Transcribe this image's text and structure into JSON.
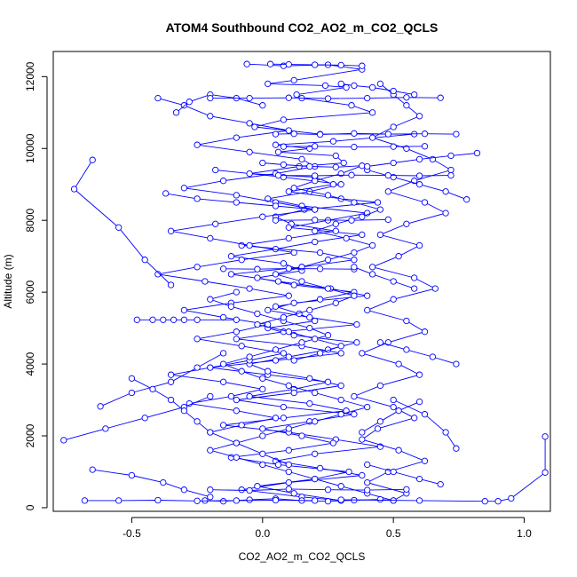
{
  "chart_data": {
    "type": "line",
    "title": "ATOM4 Southbound CO2_AO2_m_CO2_QCLS",
    "xlabel": "CO2_AO2_m_CO2_QCLS",
    "ylabel": "Altitude (m)",
    "xlim": [
      -0.8,
      1.1
    ],
    "ylim": [
      -100,
      12700
    ],
    "x_ticks": [
      -0.5,
      0.0,
      0.5,
      1.0
    ],
    "x_tick_labels": [
      "-0.5",
      "0.0",
      "0.5",
      "1.0"
    ],
    "y_ticks": [
      0,
      2000,
      4000,
      6000,
      8000,
      10000,
      12000
    ],
    "y_tick_labels": [
      "0",
      "2000",
      "4000",
      "6000",
      "8000",
      "10000",
      "12000"
    ],
    "grid": false,
    "legend": "none",
    "series_color": "#0000ff",
    "marker": "open-circle",
    "series": [
      {
        "x": [
          -0.06,
          0.08,
          0.25,
          0.38,
          0.12,
          0.02,
          0.24,
          0.32,
          0.13,
          0.15,
          0.34,
          0.42,
          0.08,
          -0.03,
          0.22,
          0.58,
          0.27,
          0.05,
          0.18,
          0.06,
          0.28,
          0.31,
          0.14,
          -0.05,
          0.2,
          0.27,
          0.1,
          0.3,
          0.44,
          0.16,
          0.05,
          0.11,
          0.28,
          0.1,
          -0.08,
          0.22,
          0.35,
          0.15,
          -0.12,
          0.06,
          0.26,
          0.4,
          0.12,
          0.02,
          0.18,
          0.36,
          0.08,
          -0.1,
          0.15,
          0.3,
          0.05,
          -0.2,
          0.02,
          0.25,
          0.12,
          -0.05,
          0.18,
          0.32,
          0.08,
          -0.15,
          0.1,
          0.28,
          0.45,
          0.2,
          0.05,
          0.22,
          0.38,
          0.1,
          -0.08,
          0.15,
          0.3,
          0.12,
          -0.02,
          0.2,
          0.33,
          0.06,
          -0.12,
          0.1,
          0.27,
          0.15,
          0.0,
          0.18,
          0.35,
          0.08,
          -0.1,
          0.12,
          0.3,
          0.18,
          0.02,
          -0.05,
          0.1,
          0.25,
          0.36,
          0.12,
          0.02,
          0.2,
          0.14,
          0.05,
          0.22,
          0.35,
          0.12,
          -0.02,
          0.15,
          0.08,
          -0.12,
          0.05,
          0.2,
          0.38,
          0.1,
          0.25,
          0.4,
          0.15,
          0.02,
          0.18,
          0.3,
          0.08,
          -0.18
        ],
        "y": [
          12350,
          12300,
          12330,
          12200,
          11900,
          11800,
          11750,
          11700,
          11500,
          11400,
          11200,
          11000,
          10800,
          10600,
          10400,
          10400,
          10200,
          10100,
          10000,
          9900,
          9800,
          9600,
          9500,
          9300,
          9200,
          9000,
          8800,
          8600,
          8500,
          8300,
          8100,
          7900,
          7700,
          7500,
          7300,
          7100,
          6900,
          6700,
          6500,
          6300,
          6100,
          5900,
          5700,
          5500,
          5300,
          5100,
          4900,
          4700,
          4500,
          4300,
          4100,
          3900,
          3700,
          3500,
          3300,
          3100,
          2900,
          2700,
          2500,
          2300,
          2100,
          1900,
          1700,
          1500,
          1300,
          1100,
          900,
          700,
          500,
          300,
          200,
          400,
          600,
          800,
          1000,
          1200,
          1400,
          1600,
          1800,
          2000,
          2200,
          2400,
          2600,
          2800,
          3000,
          3200,
          3400,
          3600,
          3800,
          4000,
          4200,
          4400,
          4600,
          4800,
          5000,
          5200,
          5400,
          5600,
          5800,
          6000,
          6200,
          6400,
          6600,
          6800,
          7000,
          7200,
          7400,
          7600,
          7800,
          8000,
          8200,
          8400,
          8600,
          8800,
          9000,
          9200,
          9400
        ]
      },
      {
        "x": [
          -0.4,
          -0.3,
          -0.2,
          -0.05,
          0.1,
          -0.1,
          -0.25,
          -0.05,
          0.15,
          0.2,
          0.05,
          -0.15,
          -0.3,
          -0.1,
          0.05,
          0.2,
          0.0,
          -0.18,
          -0.35,
          -0.2,
          -0.05,
          0.12,
          -0.08,
          -0.25,
          -0.4,
          -0.22,
          -0.05,
          0.1,
          -0.12,
          -0.3,
          -0.15,
          0.02,
          -0.1,
          -0.25,
          -0.08,
          0.08,
          -0.05,
          -0.2,
          -0.35,
          -0.15,
          0.0,
          -0.12,
          -0.28,
          -0.1,
          0.05,
          -0.08,
          -0.2
        ],
        "y": [
          11400,
          11200,
          10900,
          10700,
          10500,
          10300,
          10100,
          9900,
          9700,
          9500,
          9300,
          9100,
          8900,
          8700,
          8500,
          8300,
          8100,
          7900,
          7700,
          7500,
          7300,
          7100,
          6900,
          6700,
          6500,
          6300,
          6100,
          5900,
          5700,
          5500,
          5300,
          5100,
          4900,
          4700,
          4500,
          4300,
          4100,
          3900,
          3700,
          3500,
          3300,
          3100,
          2900,
          2700,
          2500,
          2300,
          2100
        ]
      },
      {
        "x": [
          0.45,
          0.5,
          0.55,
          0.6,
          0.5,
          0.42,
          0.55,
          0.65,
          0.72,
          0.58,
          0.48,
          0.62,
          0.7,
          0.55,
          0.45,
          0.6,
          0.52,
          0.42,
          0.58,
          0.66,
          0.5,
          0.4,
          0.55,
          0.62,
          0.48,
          0.38,
          0.52,
          0.6,
          0.45,
          0.35,
          0.5,
          0.58,
          0.44,
          0.38,
          0.52,
          0.62,
          0.48,
          0.4,
          0.55,
          0.5
        ],
        "y": [
          11800,
          11500,
          11200,
          10900,
          10600,
          10300,
          10000,
          9700,
          9400,
          9100,
          8800,
          8500,
          8200,
          7900,
          7600,
          7300,
          7000,
          6700,
          6400,
          6100,
          5800,
          5500,
          5200,
          4900,
          4600,
          4300,
          4000,
          3700,
          3400,
          3100,
          2800,
          2500,
          2200,
          1900,
          1600,
          1300,
          1000,
          700,
          400,
          200
        ]
      },
      {
        "x": [
          -0.22,
          -0.15,
          -0.05,
          0.05,
          0.15,
          0.25,
          0.35,
          0.45,
          0.5,
          0.4,
          0.3,
          0.2,
          0.1,
          0.0,
          -0.1,
          -0.2,
          -0.1,
          0.0,
          0.1,
          0.2,
          0.3,
          0.4,
          0.3,
          0.2,
          0.1,
          0.0,
          -0.08,
          -0.15,
          -0.05,
          0.05,
          0.15,
          0.25,
          0.18,
          0.08,
          -0.02,
          -0.12,
          -0.2,
          -0.1
        ],
        "y": [
          200,
          180,
          220,
          250,
          200,
          180,
          210,
          230,
          200,
          400,
          600,
          800,
          1000,
          1200,
          1400,
          1600,
          1800,
          2000,
          2200,
          2400,
          2600,
          2800,
          3000,
          3200,
          3400,
          3600,
          3800,
          4000,
          4200,
          4400,
          4600,
          4800,
          5000,
          5200,
          5400,
          5600,
          5800,
          6000
        ]
      },
      {
        "x": [
          0.0,
          0.08,
          0.18,
          0.28,
          0.38,
          0.3,
          0.2,
          0.12,
          0.25,
          0.35,
          0.45,
          0.38,
          0.28,
          0.2,
          0.32,
          0.42,
          0.35,
          0.25,
          0.15,
          0.05,
          0.15,
          0.25,
          0.35,
          0.28,
          0.18,
          0.08,
          -0.02,
          0.1,
          0.2,
          0.3,
          0.22,
          0.12
        ],
        "y": [
          9600,
          9550,
          9500,
          9480,
          9520,
          9300,
          9100,
          8900,
          8700,
          8500,
          8300,
          8100,
          7900,
          7700,
          7500,
          7300,
          7100,
          6900,
          6700,
          6500,
          6300,
          6100,
          5900,
          5700,
          5500,
          5300,
          5100,
          4900,
          4700,
          4500,
          4300,
          4100
        ]
      },
      {
        "x": [
          -0.65,
          -0.72,
          -0.55,
          -0.45,
          -0.35
        ],
        "y": [
          9680,
          8870,
          7800,
          6900,
          6200
        ]
      },
      {
        "x": [
          -0.76,
          -0.6,
          -0.45,
          -0.3,
          -0.2
        ],
        "y": [
          1880,
          2200,
          2500,
          2800,
          3100
        ]
      },
      {
        "x": [
          -0.65,
          -0.5,
          -0.38,
          -0.3,
          -0.2
        ],
        "y": [
          1060,
          900,
          700,
          500,
          300
        ]
      },
      {
        "x": [
          -0.62,
          -0.5,
          -0.35,
          -0.25,
          -0.15
        ],
        "y": [
          2820,
          3200,
          3500,
          3900,
          4300
        ]
      },
      {
        "x": [
          -0.5,
          -0.42,
          -0.35,
          -0.3,
          -0.25,
          -0.2,
          -0.1,
          0.0,
          0.1
        ],
        "y": [
          3600,
          3300,
          3000,
          2700,
          2400,
          2100,
          1800,
          1500,
          1200
        ]
      },
      {
        "x": [
          -0.48,
          -0.42,
          -0.38,
          -0.34,
          -0.3,
          -0.25,
          -0.1
        ],
        "y": [
          5230,
          5230,
          5230,
          5230,
          5230,
          5230,
          5230
        ]
      },
      {
        "x": [
          -0.37,
          -0.25,
          -0.1,
          0.05,
          0.2
        ],
        "y": [
          8750,
          8600,
          8500,
          8400,
          8300
        ]
      },
      {
        "x": [
          -0.33,
          -0.28,
          -0.2,
          -0.1,
          0.0
        ],
        "y": [
          11000,
          11300,
          11500,
          11400,
          11200
        ]
      },
      {
        "x": [
          1.08,
          1.08,
          0.95,
          0.9,
          0.85,
          0.6,
          0.3
        ],
        "y": [
          1980,
          980,
          260,
          180,
          180,
          200,
          220
        ]
      },
      {
        "x": [
          0.78,
          0.7,
          0.6,
          0.5,
          0.4
        ],
        "y": [
          8580,
          8800,
          9000,
          9200,
          9400
        ]
      },
      {
        "x": [
          0.82,
          0.72,
          0.6,
          0.5,
          0.4
        ],
        "y": [
          9870,
          9800,
          9700,
          9600,
          9500
        ]
      },
      {
        "x": [
          0.74,
          0.65,
          0.55,
          0.45
        ],
        "y": [
          4000,
          4200,
          4400,
          4600
        ]
      },
      {
        "x": [
          0.74,
          0.7,
          0.62,
          0.5
        ],
        "y": [
          1650,
          2100,
          2600,
          3000
        ]
      },
      {
        "x": [
          0.58,
          0.5,
          0.42,
          0.35,
          0.3
        ],
        "y": [
          11500,
          11600,
          11700,
          11750,
          11800
        ]
      },
      {
        "x": [
          0.38,
          0.3,
          0.2,
          0.1,
          0.03
        ],
        "y": [
          12300,
          12320,
          12330,
          12340,
          12350
        ]
      },
      {
        "x": [
          0.05,
          0.12,
          0.22,
          0.35,
          0.48,
          0.62,
          0.74
        ],
        "y": [
          10400,
          10410,
          10390,
          10420,
          10400,
          10410,
          10400
        ]
      },
      {
        "x": [
          0.08,
          0.2,
          0.35,
          0.5,
          0.62
        ],
        "y": [
          10050,
          10060,
          10040,
          10050,
          10060
        ]
      },
      {
        "x": [
          -0.2,
          -0.05,
          0.1,
          0.25,
          0.4,
          0.55,
          0.68
        ],
        "y": [
          11400,
          11400,
          11410,
          11390,
          11400,
          11420,
          11410
        ]
      },
      {
        "x": [
          0.06,
          0.2,
          0.34,
          0.48,
          0.6,
          0.72
        ],
        "y": [
          9250,
          9240,
          9260,
          9250,
          9240,
          9250
        ]
      },
      {
        "x": [
          -0.15,
          -0.02,
          0.1,
          0.22,
          0.35
        ],
        "y": [
          6650,
          6640,
          6660,
          6650,
          6640
        ]
      },
      {
        "x": [
          0.05,
          0.2,
          0.34,
          0.48
        ],
        "y": [
          8000,
          8010,
          8000,
          8020
        ]
      },
      {
        "x": [
          -0.2,
          -0.05,
          0.1,
          0.25,
          0.4,
          0.55
        ],
        "y": [
          500,
          480,
          520,
          500,
          490,
          510
        ]
      },
      {
        "x": [
          -0.68,
          -0.55,
          -0.4,
          -0.25,
          -0.1,
          0.05,
          0.2
        ],
        "y": [
          200,
          200,
          210,
          190,
          200,
          210,
          200
        ]
      },
      {
        "x": [
          0.58,
          0.5,
          0.42,
          0.35
        ],
        "y": [
          6100,
          6300,
          6500,
          6700
        ]
      },
      {
        "x": [
          0.6,
          0.52,
          0.45,
          0.38
        ],
        "y": [
          2950,
          2700,
          2400,
          2100
        ]
      },
      {
        "x": [
          0.68,
          0.6,
          0.5,
          0.4
        ],
        "y": [
          650,
          800,
          1000,
          1200
        ]
      }
    ]
  }
}
